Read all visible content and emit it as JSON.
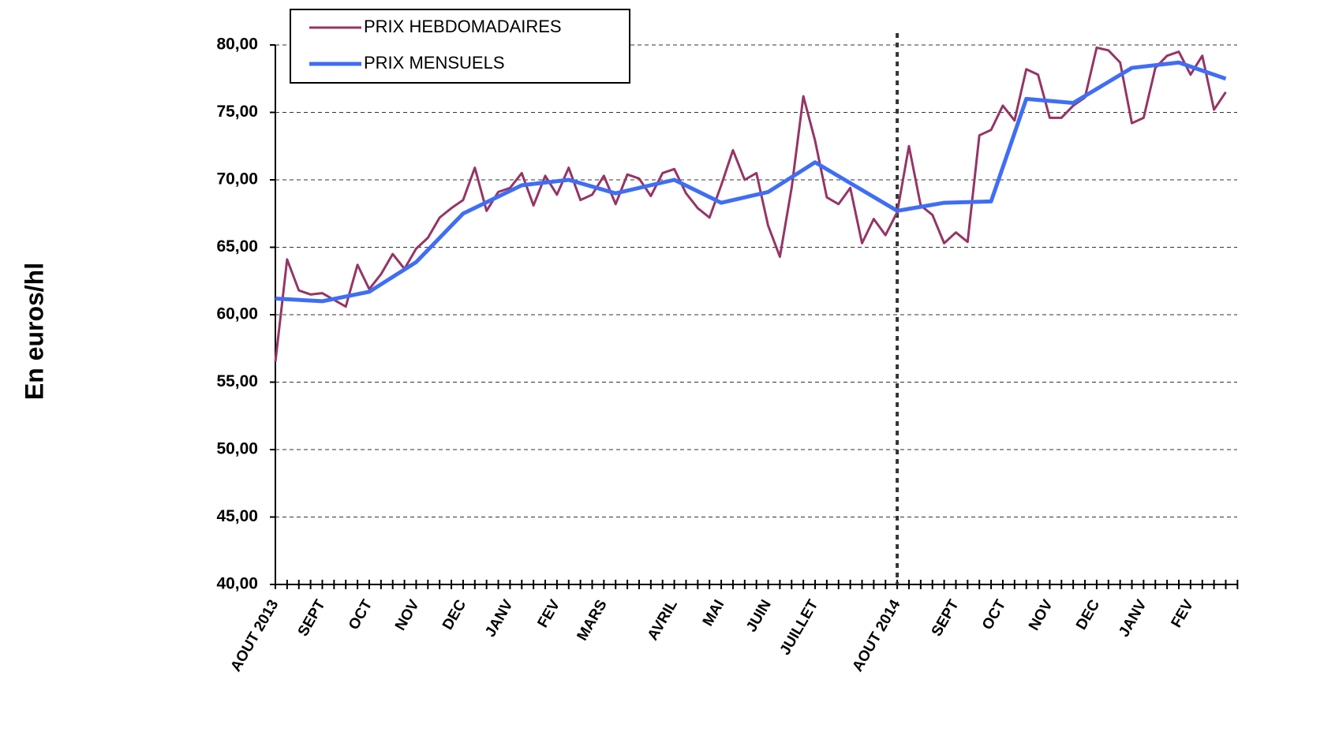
{
  "chart_data": {
    "type": "line",
    "y_label": "En euros/hl",
    "categories": [
      "AOUT 2013",
      null,
      null,
      null,
      "SEPT",
      null,
      null,
      null,
      "OCT",
      null,
      null,
      null,
      "NOV",
      null,
      null,
      null,
      "DEC",
      null,
      null,
      null,
      "JANV",
      null,
      null,
      null,
      "FEV",
      null,
      null,
      null,
      "MARS",
      null,
      null,
      null,
      null,
      null,
      "AVRIL",
      null,
      null,
      null,
      "MAI",
      null,
      null,
      null,
      "JUIN",
      null,
      null,
      null,
      "JUILLET",
      null,
      null,
      null,
      null,
      null,
      null,
      "AOUT 2014",
      null,
      null,
      null,
      null,
      "SEPT",
      null,
      null,
      null,
      "OCT",
      null,
      null,
      null,
      "NOV",
      null,
      null,
      null,
      "DEC",
      null,
      null,
      null,
      "JANV",
      null,
      null,
      null,
      "FEV",
      null,
      null,
      null,
      null
    ],
    "series": [
      {
        "name": "PRIX HEBDOMADAIRES",
        "color": "#953565",
        "values": [
          56.5,
          64.1,
          61.8,
          61.5,
          61.6,
          61.1,
          60.6,
          63.7,
          61.9,
          63.0,
          64.5,
          63.4,
          64.9,
          65.7,
          67.2,
          67.9,
          68.5,
          70.9,
          67.7,
          69.1,
          69.4,
          70.5,
          68.1,
          70.3,
          68.9,
          70.9,
          68.5,
          68.9,
          70.3,
          68.2,
          70.4,
          70.1,
          68.8,
          70.5,
          70.8,
          69.0,
          67.9,
          67.2,
          69.6,
          72.2,
          70.0,
          70.5,
          66.6,
          64.3,
          69.4,
          76.2,
          72.9,
          68.7,
          68.2,
          69.4,
          65.3,
          67.1,
          65.9,
          67.6,
          72.5,
          68.1,
          67.4,
          65.3,
          66.1,
          65.4,
          73.3,
          73.7,
          75.5,
          74.4,
          78.2,
          77.8,
          74.6,
          74.6,
          75.5,
          76.1,
          79.8,
          79.6,
          78.7,
          74.2,
          74.6,
          78.3,
          79.2,
          79.5,
          77.8,
          79.2,
          75.2,
          76.5,
          null
        ]
      },
      {
        "name": "PRIX MENSUELS",
        "color": "#3f6ef5",
        "x": [
          0,
          4,
          8,
          12,
          16,
          21,
          25,
          29,
          34,
          38,
          42,
          46,
          53,
          57,
          61,
          64,
          68,
          73,
          77,
          81
        ],
        "values": [
          61.2,
          61.0,
          61.7,
          63.9,
          67.5,
          69.6,
          70.0,
          69.0,
          70.0,
          68.3,
          69.1,
          71.3,
          67.7,
          68.3,
          68.4,
          76.0,
          75.7,
          78.3,
          78.7,
          77.5
        ]
      }
    ],
    "ylim": [
      40,
      80
    ],
    "yticks": [
      {
        "value": 40,
        "label": "40,00"
      },
      {
        "value": 45,
        "label": "45,00"
      },
      {
        "value": 50,
        "label": "50,00"
      },
      {
        "value": 55,
        "label": "55,00"
      },
      {
        "value": 60,
        "label": "60,00"
      },
      {
        "value": 65,
        "label": "65,00"
      },
      {
        "value": 70,
        "label": "70,00"
      },
      {
        "value": 75,
        "label": "75,00"
      },
      {
        "value": 80,
        "label": "80,00"
      }
    ],
    "grid": true
  }
}
